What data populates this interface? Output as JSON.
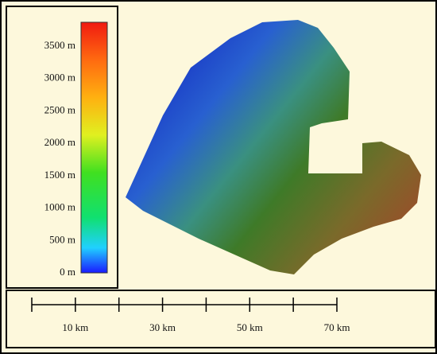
{
  "legend": {
    "labels": [
      "3500 m",
      "3000 m",
      "2500 m",
      "2000 m",
      "1500 m",
      "1000 m",
      "500 m",
      "0 m"
    ]
  },
  "scale_bar": {
    "labels": [
      "10 km",
      "30 km",
      "50 km",
      "70 km"
    ]
  }
}
